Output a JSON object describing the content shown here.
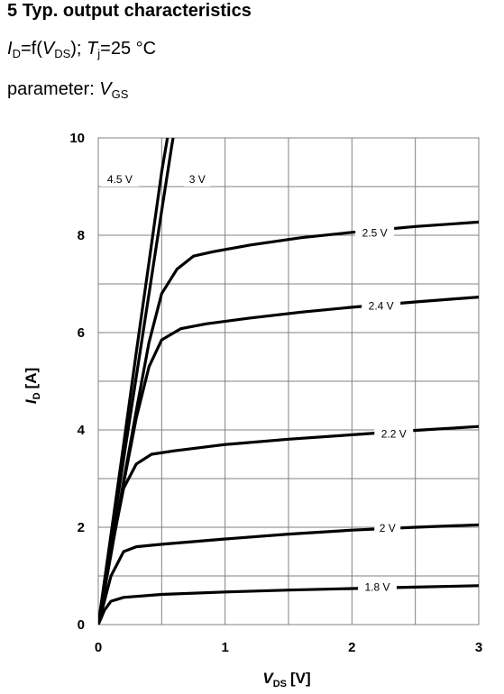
{
  "header": {
    "number": "5",
    "title": "Typ. output characteristics",
    "func_i": "I",
    "func_i_sub": "D",
    "func_eq": "=f(",
    "func_v": "V",
    "func_v_sub": "DS",
    "func_close": ");",
    "func_t": "T",
    "func_t_sub": "j",
    "func_temp": "=25 °C",
    "param_prefix": "parameter:",
    "param_v": "V",
    "param_v_sub": "GS"
  },
  "chart_data": {
    "type": "line",
    "title": "Typ. output characteristics",
    "xlabel": "V_DS [V]",
    "ylabel": "I_D [A]",
    "xlabel_main": "V",
    "xlabel_sub": "DS",
    "xlabel_unit": "[V]",
    "ylabel_main": "I",
    "ylabel_sub": "D",
    "ylabel_unit": "[A]",
    "xlim": [
      0,
      3
    ],
    "ylim": [
      0,
      10
    ],
    "x_ticks": [
      0,
      1,
      2,
      3
    ],
    "y_ticks": [
      0,
      2,
      4,
      6,
      8,
      10
    ],
    "grid": true,
    "colors": {
      "curve": "#000000",
      "grid": "#808080",
      "background": "#ffffff"
    },
    "series": [
      {
        "name": "4.5 V",
        "label_at": [
          0.17,
          9.15
        ],
        "points": [
          [
            0,
            0
          ],
          [
            0.1,
            1.85
          ],
          [
            0.2,
            3.7
          ],
          [
            0.3,
            5.6
          ],
          [
            0.4,
            7.45
          ],
          [
            0.5,
            9.3
          ],
          [
            0.545,
            10
          ]
        ]
      },
      {
        "name": "3 V",
        "label_at": [
          0.78,
          9.15
        ],
        "points": [
          [
            0,
            0
          ],
          [
            0.1,
            1.7
          ],
          [
            0.2,
            3.4
          ],
          [
            0.3,
            5.1
          ],
          [
            0.4,
            6.8
          ],
          [
            0.5,
            8.5
          ],
          [
            0.58,
            9.85
          ],
          [
            0.59,
            10
          ]
        ]
      },
      {
        "name": "2.5 V",
        "label_at": [
          2.18,
          8.05
        ],
        "points": [
          [
            0,
            0
          ],
          [
            0.1,
            1.45
          ],
          [
            0.2,
            2.95
          ],
          [
            0.3,
            4.4
          ],
          [
            0.4,
            5.8
          ],
          [
            0.5,
            6.8
          ],
          [
            0.62,
            7.3
          ],
          [
            0.75,
            7.57
          ],
          [
            0.9,
            7.66
          ],
          [
            1.2,
            7.8
          ],
          [
            1.6,
            7.95
          ],
          [
            2.0,
            8.06
          ],
          [
            2.5,
            8.18
          ],
          [
            3.0,
            8.27
          ]
        ]
      },
      {
        "name": "2.4 V",
        "label_at": [
          2.23,
          6.55
        ],
        "points": [
          [
            0,
            0
          ],
          [
            0.1,
            1.45
          ],
          [
            0.2,
            2.9
          ],
          [
            0.3,
            4.25
          ],
          [
            0.4,
            5.3
          ],
          [
            0.5,
            5.85
          ],
          [
            0.65,
            6.08
          ],
          [
            0.85,
            6.18
          ],
          [
            1.2,
            6.3
          ],
          [
            1.6,
            6.42
          ],
          [
            2.0,
            6.52
          ],
          [
            2.5,
            6.63
          ],
          [
            3.0,
            6.73
          ]
        ]
      },
      {
        "name": "2.2 V",
        "label_at": [
          2.33,
          3.92
        ],
        "points": [
          [
            0,
            0
          ],
          [
            0.1,
            1.5
          ],
          [
            0.2,
            2.8
          ],
          [
            0.3,
            3.3
          ],
          [
            0.42,
            3.5
          ],
          [
            0.6,
            3.57
          ],
          [
            1.0,
            3.7
          ],
          [
            1.5,
            3.81
          ],
          [
            2.0,
            3.9
          ],
          [
            2.5,
            3.99
          ],
          [
            3.0,
            4.07
          ]
        ]
      },
      {
        "name": "2 V",
        "label_at": [
          2.28,
          1.98
        ],
        "points": [
          [
            0,
            0
          ],
          [
            0.1,
            1.0
          ],
          [
            0.2,
            1.5
          ],
          [
            0.3,
            1.6
          ],
          [
            0.5,
            1.65
          ],
          [
            1.0,
            1.76
          ],
          [
            1.5,
            1.86
          ],
          [
            2.0,
            1.94
          ],
          [
            2.5,
            2.0
          ],
          [
            3.0,
            2.05
          ]
        ]
      },
      {
        "name": "1.8 V",
        "label_at": [
          2.2,
          0.77
        ],
        "points": [
          [
            0,
            0
          ],
          [
            0.05,
            0.3
          ],
          [
            0.1,
            0.48
          ],
          [
            0.2,
            0.56
          ],
          [
            0.5,
            0.62
          ],
          [
            1.0,
            0.67
          ],
          [
            1.5,
            0.71
          ],
          [
            2.0,
            0.74
          ],
          [
            2.5,
            0.77
          ],
          [
            3.0,
            0.8
          ]
        ]
      }
    ]
  }
}
